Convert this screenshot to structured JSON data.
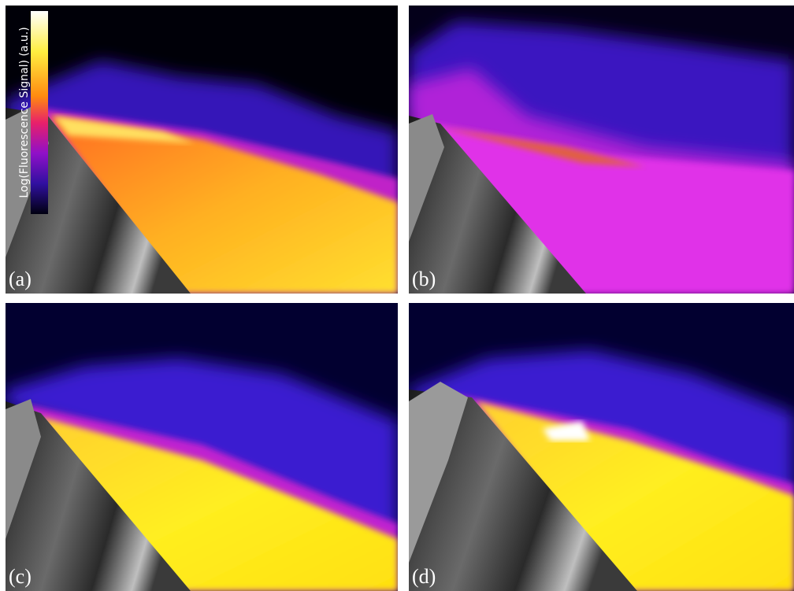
{
  "colorbar": {
    "label": "Log(Fluorescence Signal) (a.u.)"
  },
  "panels": [
    {
      "label": "(a)"
    },
    {
      "label": "(b)"
    },
    {
      "label": "(c)"
    },
    {
      "label": "(d)"
    }
  ]
}
